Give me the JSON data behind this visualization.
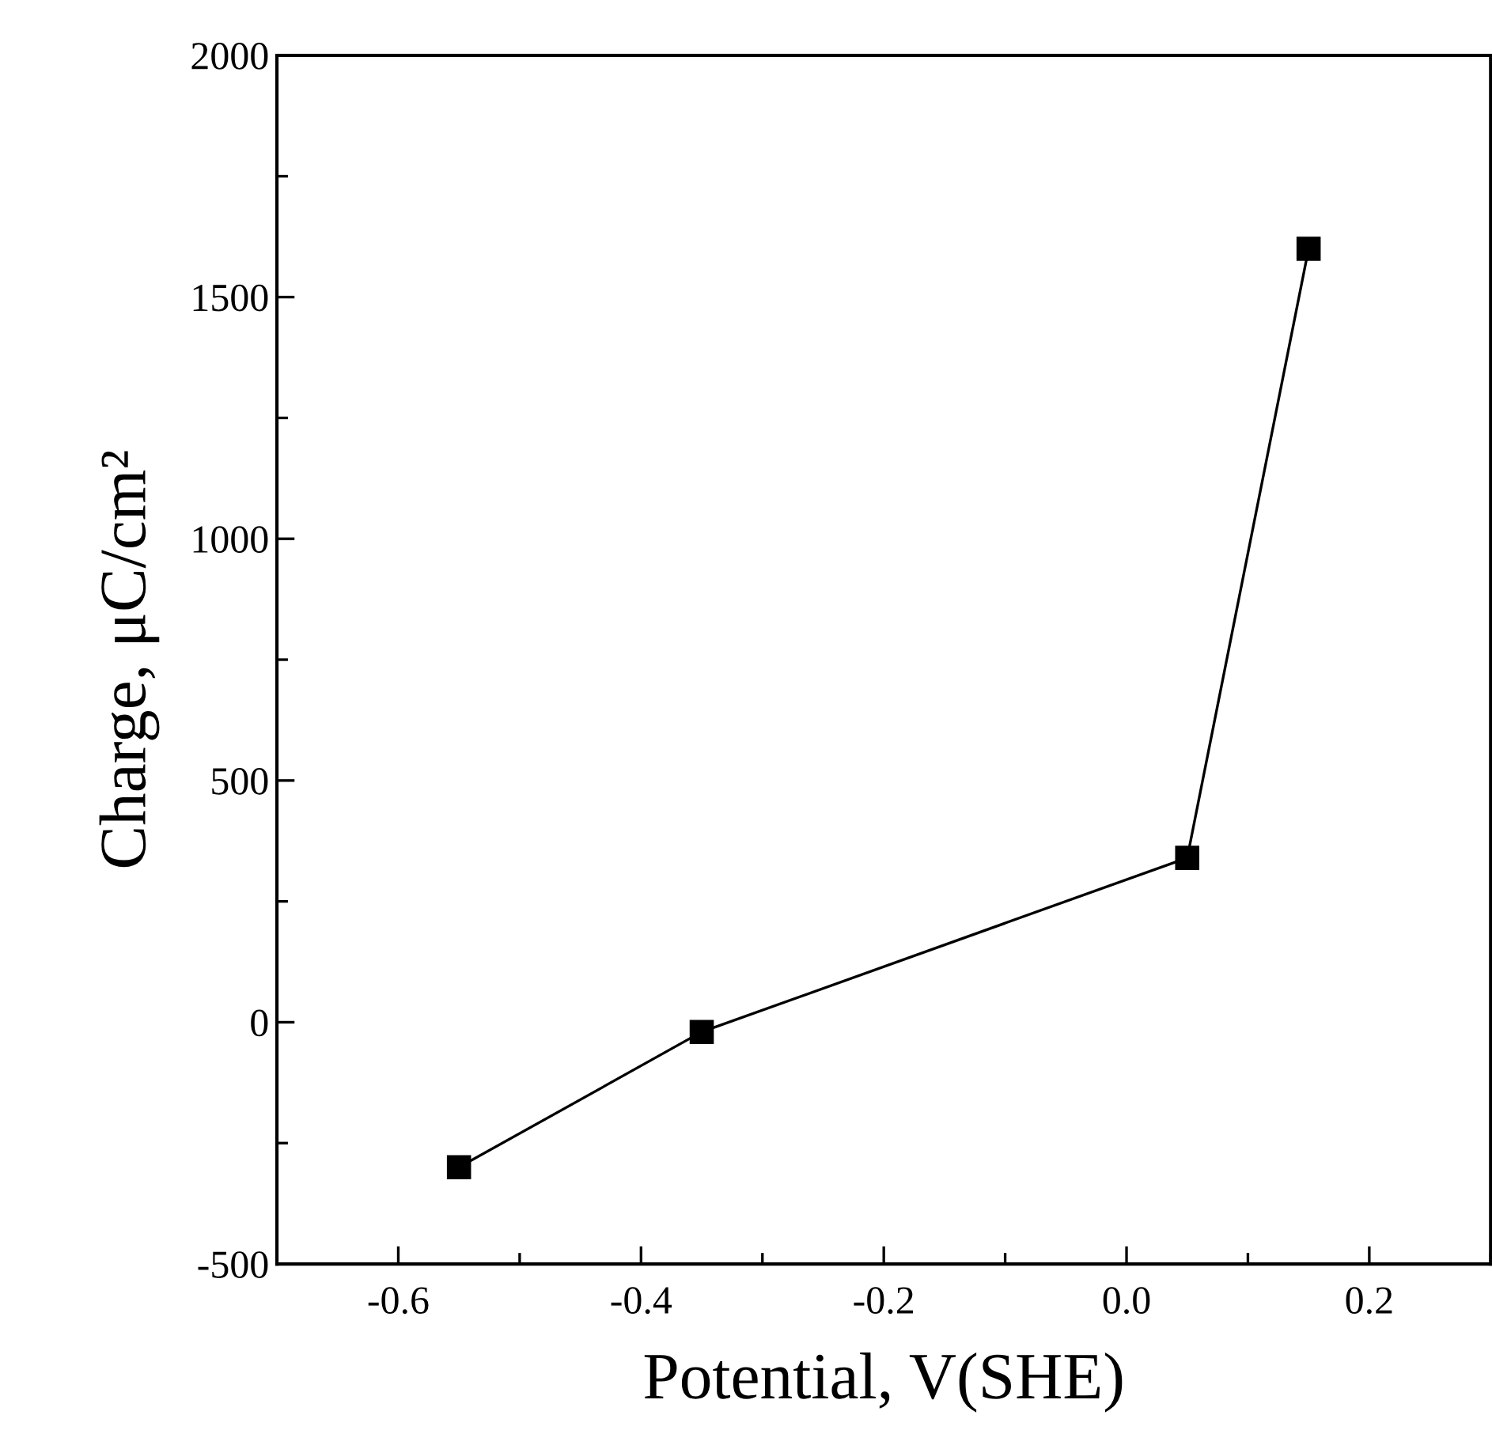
{
  "chart_data": {
    "type": "line",
    "xlabel": "Potential, V(SHE)",
    "ylabel": "Charge, μC/cm²",
    "x": [
      -0.55,
      -0.35,
      0.05,
      0.15
    ],
    "series": [
      {
        "color": "#000000",
        "values": [
          -300,
          -20,
          340,
          1600
        ]
      }
    ],
    "marker": "square",
    "line_style": "solid",
    "xlim": [
      -0.7,
      0.3
    ],
    "xticks": [
      {
        "value": -0.6,
        "label": "-0.6"
      },
      {
        "value": -0.4,
        "label": "-0.4"
      },
      {
        "value": -0.2,
        "label": "-0.2"
      },
      {
        "value": 0.0,
        "label": "0.0"
      },
      {
        "value": 0.2,
        "label": "0.2"
      }
    ],
    "ylim": [
      -500,
      2000
    ],
    "yticks": [
      {
        "value": -500,
        "label": "-500"
      },
      0,
      500,
      1000,
      1500,
      2000
    ],
    "grid": false,
    "legend": false
  }
}
